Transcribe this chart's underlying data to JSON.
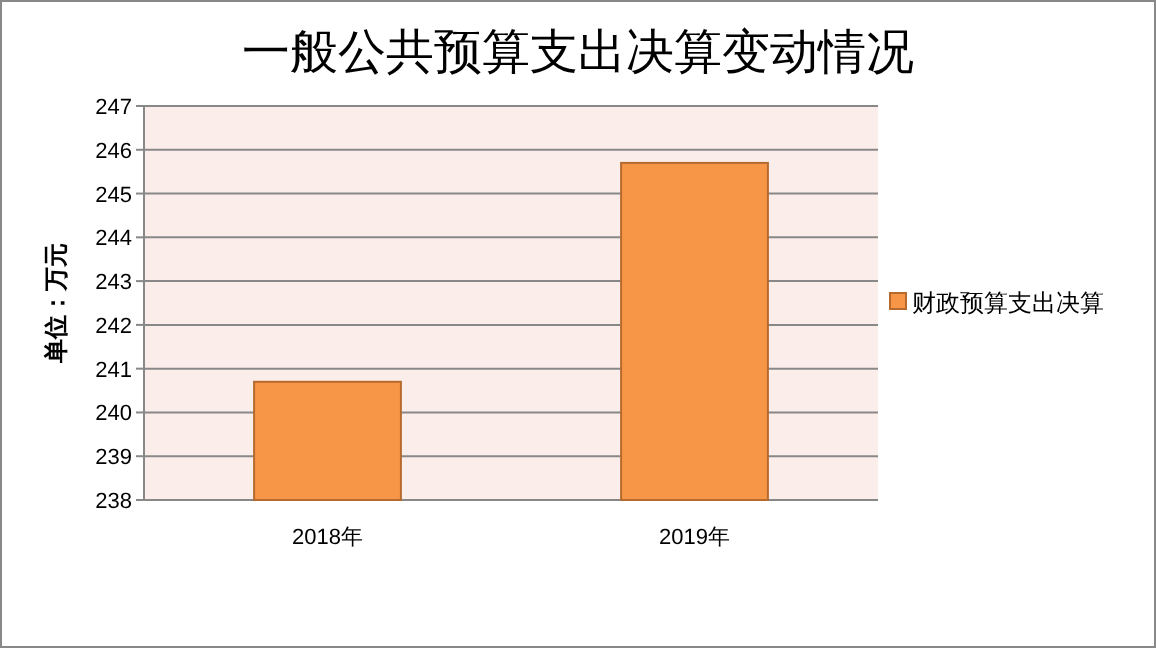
{
  "chart_data": {
    "type": "bar",
    "title": "一般公共预算支出决算变动情况",
    "ylabel": "单位：万元",
    "categories": [
      "2018年",
      "2019年"
    ],
    "series": [
      {
        "name": "财政预算支出决算",
        "color": "#f79646",
        "values": [
          240.7,
          245.7
        ]
      }
    ],
    "ylim": [
      238,
      247
    ],
    "yticks": [
      238,
      239,
      240,
      241,
      242,
      243,
      244,
      245,
      246,
      247
    ],
    "grid": "y",
    "legend": "right"
  }
}
